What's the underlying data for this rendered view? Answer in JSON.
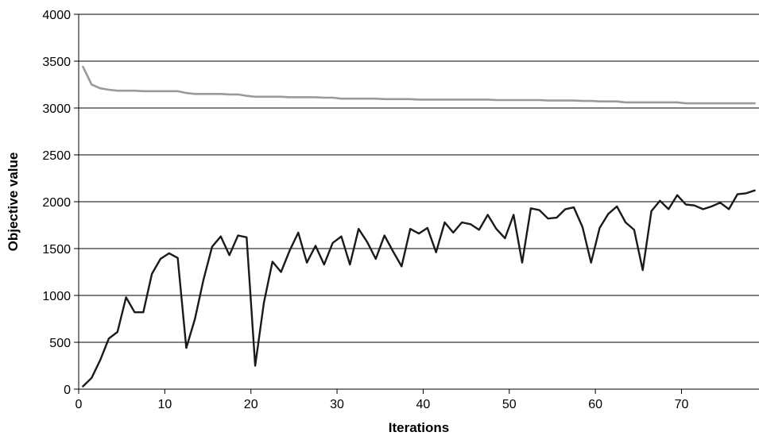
{
  "chart_data": {
    "type": "line",
    "title": "",
    "xlabel": "Iterations",
    "ylabel": "Objective value",
    "xlim": [
      0,
      79
    ],
    "ylim": [
      0,
      4000
    ],
    "xticks": [
      0,
      10,
      20,
      30,
      40,
      50,
      60,
      70
    ],
    "yticks": [
      0,
      500,
      1000,
      1500,
      2000,
      2500,
      3000,
      3500,
      4000
    ],
    "grid": "horizontal",
    "legend": "none",
    "series": [
      {
        "color": "#9a9a9a",
        "x": [
          0.5,
          1.5,
          2.5,
          3.5,
          4.5,
          5.5,
          6.5,
          7.5,
          8.5,
          9.5,
          10.5,
          11.5,
          12.5,
          13.5,
          14.5,
          15.5,
          16.5,
          17.5,
          18.5,
          19.5,
          20.5,
          21.5,
          22.5,
          23.5,
          24.5,
          25.5,
          26.5,
          27.5,
          28.5,
          29.5,
          30.5,
          31.5,
          32.5,
          33.5,
          34.5,
          35.5,
          36.5,
          37.5,
          38.5,
          39.5,
          40.5,
          41.5,
          42.5,
          43.5,
          44.5,
          45.5,
          46.5,
          47.5,
          48.5,
          49.5,
          50.5,
          51.5,
          52.5,
          53.5,
          54.5,
          55.5,
          56.5,
          57.5,
          58.5,
          59.5,
          60.5,
          61.5,
          62.5,
          63.5,
          64.5,
          65.5,
          66.5,
          67.5,
          68.5,
          69.5,
          70.5,
          71.5,
          72.5,
          73.5,
          74.5,
          75.5,
          76.5,
          77.5,
          78.5
        ],
        "y": [
          3440,
          3250,
          3210,
          3195,
          3185,
          3185,
          3185,
          3180,
          3180,
          3180,
          3180,
          3180,
          3160,
          3150,
          3150,
          3150,
          3150,
          3145,
          3145,
          3130,
          3120,
          3120,
          3120,
          3120,
          3115,
          3115,
          3115,
          3115,
          3110,
          3110,
          3100,
          3100,
          3100,
          3100,
          3100,
          3095,
          3095,
          3095,
          3095,
          3090,
          3090,
          3090,
          3090,
          3090,
          3090,
          3090,
          3090,
          3090,
          3085,
          3085,
          3085,
          3085,
          3085,
          3085,
          3080,
          3080,
          3080,
          3080,
          3075,
          3075,
          3070,
          3070,
          3070,
          3060,
          3060,
          3060,
          3060,
          3060,
          3060,
          3060,
          3050,
          3050,
          3050,
          3050,
          3050,
          3050,
          3050,
          3050,
          3050
        ]
      },
      {
        "color": "#1a1a1a",
        "x": [
          0.5,
          1.5,
          2.5,
          3.5,
          4.5,
          5.5,
          6.5,
          7.5,
          8.5,
          9.5,
          10.5,
          11.5,
          12.5,
          13.5,
          14.5,
          15.5,
          16.5,
          17.5,
          18.5,
          19.5,
          20.5,
          21.5,
          22.5,
          23.5,
          24.5,
          25.5,
          26.5,
          27.5,
          28.5,
          29.5,
          30.5,
          31.5,
          32.5,
          33.5,
          34.5,
          35.5,
          36.5,
          37.5,
          38.5,
          39.5,
          40.5,
          41.5,
          42.5,
          43.5,
          44.5,
          45.5,
          46.5,
          47.5,
          48.5,
          49.5,
          50.5,
          51.5,
          52.5,
          53.5,
          54.5,
          55.5,
          56.5,
          57.5,
          58.5,
          59.5,
          60.5,
          61.5,
          62.5,
          63.5,
          64.5,
          65.5,
          66.5,
          67.5,
          68.5,
          69.5,
          70.5,
          71.5,
          72.5,
          73.5,
          74.5,
          75.5,
          76.5,
          77.5,
          78.5
        ],
        "y": [
          30,
          120,
          310,
          540,
          610,
          980,
          820,
          820,
          1230,
          1390,
          1450,
          1400,
          440,
          750,
          1170,
          1520,
          1630,
          1430,
          1640,
          1620,
          250,
          920,
          1360,
          1250,
          1480,
          1670,
          1350,
          1530,
          1330,
          1560,
          1630,
          1330,
          1710,
          1570,
          1390,
          1640,
          1470,
          1310,
          1710,
          1660,
          1720,
          1460,
          1780,
          1670,
          1780,
          1760,
          1700,
          1860,
          1710,
          1610,
          1860,
          1350,
          1930,
          1910,
          1820,
          1830,
          1920,
          1940,
          1730,
          1350,
          1720,
          1870,
          1950,
          1780,
          1700,
          1270,
          1900,
          2010,
          1920,
          2070,
          1970,
          1960,
          1920,
          1950,
          1990,
          1920,
          2080,
          2090,
          2120
        ]
      }
    ]
  }
}
